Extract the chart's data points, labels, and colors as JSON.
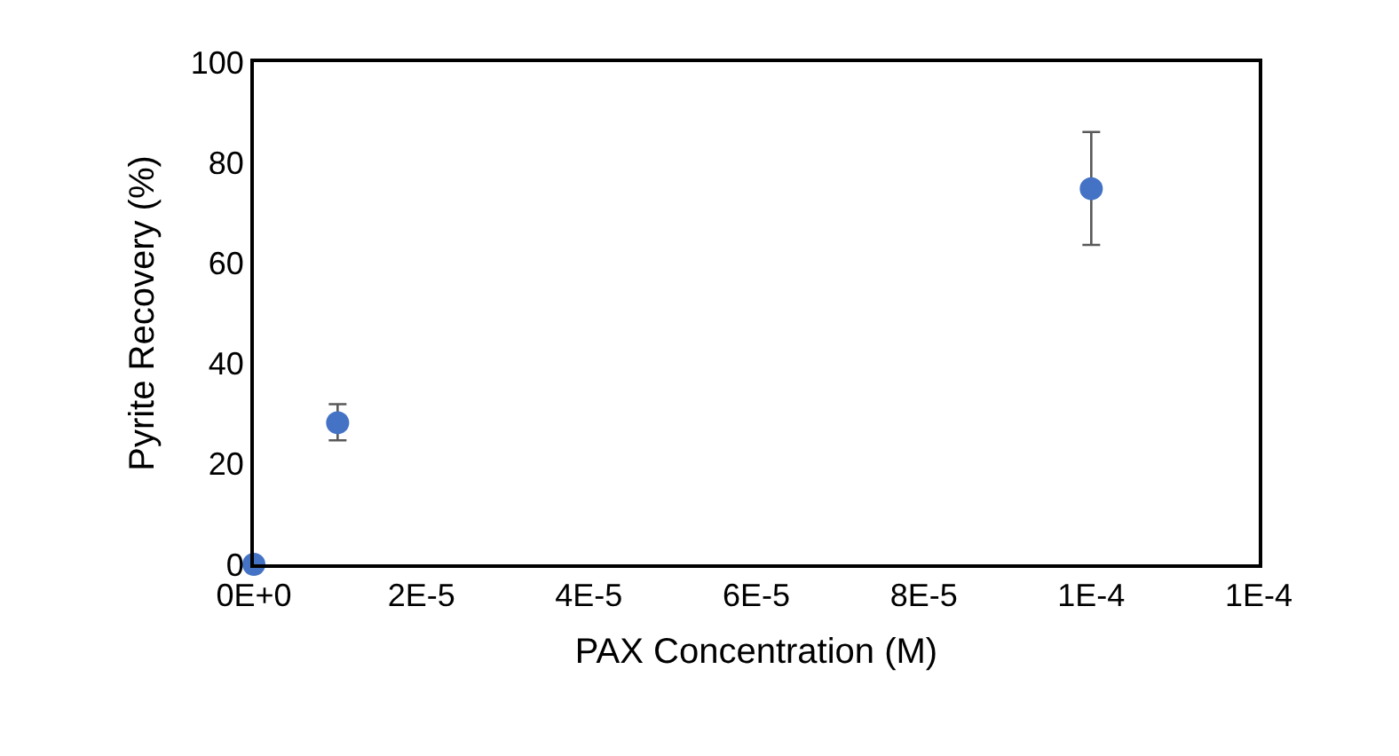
{
  "chart_data": {
    "type": "scatter",
    "xlabel": "PAX Concentration (M)",
    "ylabel": "Pyrite Recovery (%)",
    "x": [
      0,
      1e-05,
      0.0001
    ],
    "series": [
      {
        "color": "#4472c4",
        "values": [
          0,
          28.2,
          74.8
        ],
        "errors": [
          null,
          [
            24.7,
            31.9
          ],
          [
            63.6,
            86.1
          ]
        ]
      }
    ],
    "xlim": [
      0,
      0.00012
    ],
    "xticks": [
      {
        "value": 0,
        "label": "0E+0"
      },
      {
        "value": 2e-05,
        "label": "2E-5"
      },
      {
        "value": 4e-05,
        "label": "4E-5"
      },
      {
        "value": 6e-05,
        "label": "6E-5"
      },
      {
        "value": 8e-05,
        "label": "8E-5"
      },
      {
        "value": 0.0001,
        "label": "1E-4"
      },
      {
        "value": 0.00012,
        "label": "1E-4"
      }
    ],
    "ylim": [
      0,
      100
    ],
    "yticks": [
      0,
      20,
      40,
      60,
      80,
      100
    ],
    "legend": false,
    "marker": "circle"
  }
}
